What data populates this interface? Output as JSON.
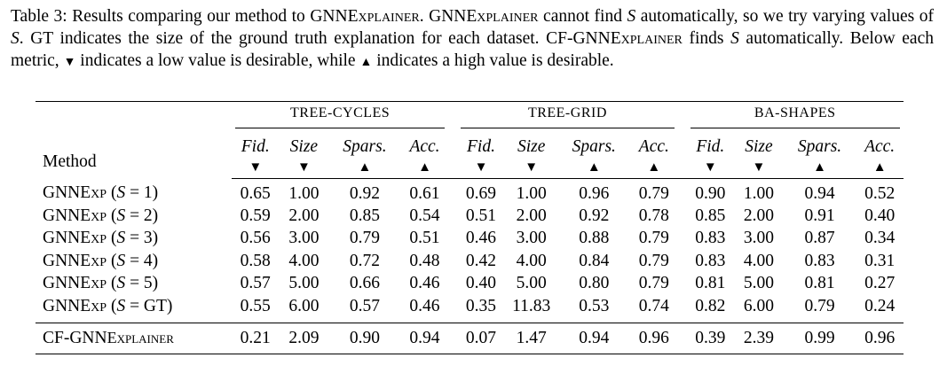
{
  "caption": {
    "label": "Table 3:",
    "s1": " Results comparing our method to GNN",
    "s1_sc": "Explainer",
    "s2": ". GNN",
    "s2_sc": "Explainer",
    "s3": " cannot find ",
    "var_s": "S",
    "s4": " automatically, so we try varying values of ",
    "s5": ". GT indicates the size of the ground truth explanation for each dataset. CF-GNN",
    "s5_sc": "Explainer",
    "s6": " finds ",
    "s7": " automatically. Below each metric, ",
    "down": "▼",
    "s8": " indicates a low value is desirable, while ",
    "up": "▲",
    "s9": " indicates a high value is desirable."
  },
  "table": {
    "groups": [
      "TREE-CYCLES",
      "TREE-GRID",
      "BA-SHAPES"
    ],
    "metrics": [
      "Fid.",
      "Size",
      "Spars.",
      "Acc."
    ],
    "arrows": [
      "▼",
      "▼",
      "▲",
      "▲"
    ],
    "method_header": "Method",
    "rows": [
      {
        "method": "GNNExp (S = 1)",
        "values": [
          "0.65",
          "1.00",
          "0.92",
          "0.61",
          "0.69",
          "1.00",
          "0.96",
          "0.79",
          "0.90",
          "1.00",
          "0.94",
          "0.52"
        ]
      },
      {
        "method": "GNNExp (S = 2)",
        "values": [
          "0.59",
          "2.00",
          "0.85",
          "0.54",
          "0.51",
          "2.00",
          "0.92",
          "0.78",
          "0.85",
          "2.00",
          "0.91",
          "0.40"
        ]
      },
      {
        "method": "GNNExp (S = 3)",
        "values": [
          "0.56",
          "3.00",
          "0.79",
          "0.51",
          "0.46",
          "3.00",
          "0.88",
          "0.79",
          "0.83",
          "3.00",
          "0.87",
          "0.34"
        ]
      },
      {
        "method": "GNNExp (S = 4)",
        "values": [
          "0.58",
          "4.00",
          "0.72",
          "0.48",
          "0.42",
          "4.00",
          "0.84",
          "0.79",
          "0.83",
          "4.00",
          "0.83",
          "0.31"
        ]
      },
      {
        "method": "GNNExp (S = 5)",
        "values": [
          "0.57",
          "5.00",
          "0.66",
          "0.46",
          "0.40",
          "5.00",
          "0.80",
          "0.79",
          "0.81",
          "5.00",
          "0.81",
          "0.27"
        ]
      },
      {
        "method": "GNNExp (S = GT)",
        "values": [
          "0.55",
          "6.00",
          "0.57",
          "0.46",
          "0.35",
          "11.83",
          "0.53",
          "0.74",
          "0.82",
          "6.00",
          "0.79",
          "0.24"
        ]
      }
    ],
    "ours": {
      "method": "CF-GNNExplainer",
      "values": [
        "0.21",
        "2.09",
        "0.90",
        "0.94",
        "0.07",
        "1.47",
        "0.94",
        "0.96",
        "0.39",
        "2.39",
        "0.99",
        "0.96"
      ],
      "bold": [
        true,
        false,
        false,
        true,
        true,
        false,
        false,
        true,
        true,
        false,
        false,
        true
      ]
    }
  }
}
